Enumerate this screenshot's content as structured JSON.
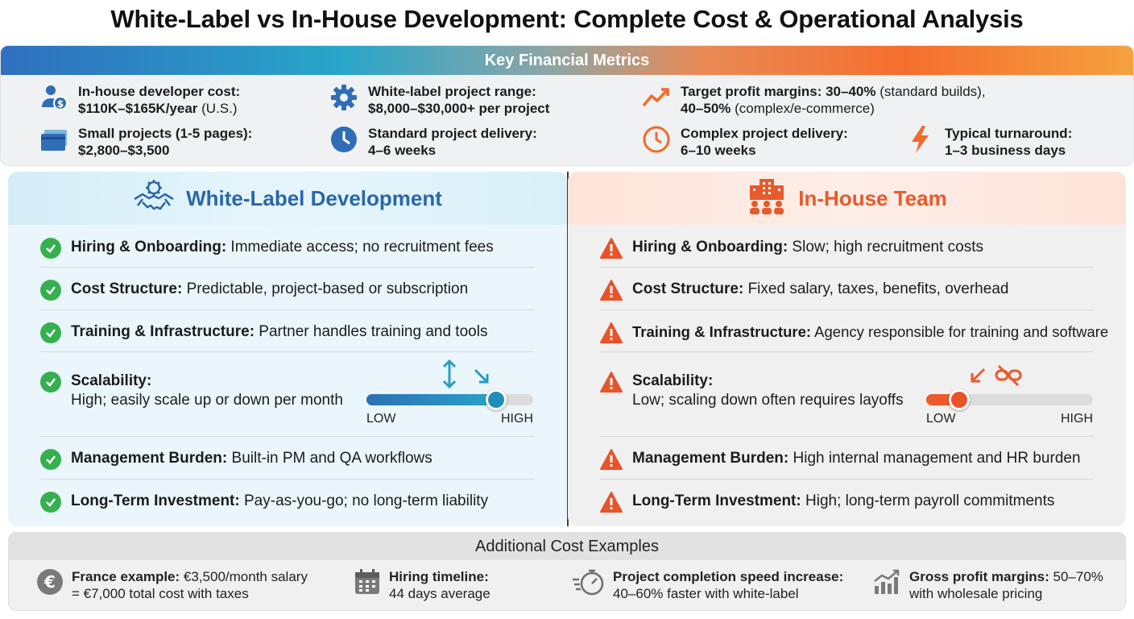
{
  "title": "White-Label vs In-House Development: Complete Cost & Operational Analysis",
  "metrics": {
    "header": "Key Financial Metrics",
    "items": [
      {
        "label": "In-house developer cost:",
        "value": "$110K–$165K/year",
        "note": " (U.S.)",
        "icon": "user-dollar-icon"
      },
      {
        "label": "White-label project range:",
        "value": "$8,000–$30,000+ per project",
        "icon": "gear-icon"
      },
      {
        "label": "Target profit margins: 30–40%",
        "value": " (standard builds),",
        "value2": "40–50%",
        "note": " (complex/e-commerce)",
        "icon": "trend-up-icon"
      },
      {
        "label": "Small projects (1-5 pages):",
        "value": "$2,800–$3,500",
        "icon": "cards-icon"
      },
      {
        "label": "Standard project delivery:",
        "value": "4–6 weeks",
        "icon": "clock-icon"
      },
      {
        "label": "Complex project delivery:",
        "value": "6–10 weeks",
        "icon": "clock-outline-icon"
      },
      {
        "label": "Typical turnaround:",
        "value": "1–3 business days",
        "icon": "lightning-icon"
      }
    ]
  },
  "white_label": {
    "title": "White-Label Development",
    "rows": [
      {
        "label": "Hiring & Onboarding:",
        "text": " Immediate access; no recruitment fees"
      },
      {
        "label": "Cost Structure:",
        "text": " Predictable, project-based or subscription"
      },
      {
        "label": "Training & Infrastructure:",
        "text": " Partner handles training and tools"
      },
      {
        "label": "Scalability:",
        "text": "High; easily scale up or down per month"
      },
      {
        "label": "Management Burden:",
        "text": " Built-in PM and QA workflows"
      },
      {
        "label": "Long-Term Investment:",
        "text": " Pay-as-you-go; no long-term liability"
      }
    ],
    "slider": {
      "low": "LOW",
      "high": "HIGH",
      "level": 0.78
    }
  },
  "in_house": {
    "title": "In-House Team",
    "rows": [
      {
        "label": "Hiring & Onboarding:",
        "text": " Slow; high recruitment costs"
      },
      {
        "label": "Cost Structure:",
        "text": " Fixed salary, taxes, benefits, overhead"
      },
      {
        "label": "Training & Infrastructure:",
        "text": " Agency responsible for training and software"
      },
      {
        "label": "Scalability:",
        "text": "Low; scaling down often requires layoffs"
      },
      {
        "label": "Management Burden:",
        "text": " High internal management and HR burden"
      },
      {
        "label": "Long-Term Investment:",
        "text": " High; long-term payroll commitments"
      }
    ],
    "slider": {
      "low": "LOW",
      "high": "HIGH",
      "level": 0.2
    }
  },
  "additional": {
    "header": "Additional Cost Examples",
    "items": [
      {
        "label": "France example:",
        "text": " €3,500/month salary",
        "line2": "= €7,000 total cost with taxes",
        "icon": "euro-icon"
      },
      {
        "label": "Hiring timeline:",
        "text": "",
        "line2": "44 days average",
        "icon": "calendar-icon"
      },
      {
        "label": "Project completion speed increase:",
        "text": "",
        "line2": "40–60% faster with white-label",
        "icon": "stopwatch-icon"
      },
      {
        "label": "Gross profit margins:",
        "text": " 50–70%",
        "line2": "with wholesale pricing",
        "icon": "bar-growth-icon"
      }
    ]
  },
  "colors": {
    "green": "#35b04f",
    "blue": "#2a67a8",
    "orange": "#e85a2b"
  }
}
